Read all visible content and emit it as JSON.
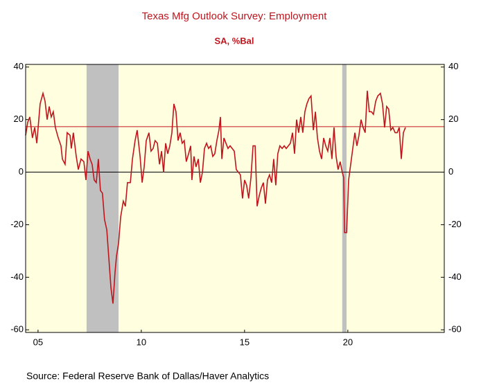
{
  "chart_data": {
    "type": "line",
    "title": "Texas Mfg Outlook Survey: Employment",
    "subtitle": "SA, %Bal",
    "source": "Source:  Federal Reserve Bank of Dallas/Haver Analytics",
    "xlim": [
      2004.9,
      2025.17
    ],
    "xticks": [
      {
        "value": 2005.5,
        "label": "05"
      },
      {
        "value": 2010.5,
        "label": "10"
      },
      {
        "value": 2015.5,
        "label": "15"
      },
      {
        "value": 2020.5,
        "label": "20"
      }
    ],
    "ylim": [
      -61,
      41
    ],
    "yticks": [
      -60,
      -40,
      -20,
      0,
      20,
      40
    ],
    "y2lim": [
      -61,
      41
    ],
    "y2ticks": [
      -60,
      -40,
      -20,
      0,
      20,
      40
    ],
    "reference_line": 17.3,
    "reference_color": "#c0141c",
    "zero_line": 0,
    "shaded_periods": [
      [
        2007.85,
        2009.4
      ],
      [
        2020.23,
        2020.44
      ]
    ],
    "shade_color": "#c0c0c0",
    "background": "#ffffe0",
    "series": [
      {
        "name": "Employment",
        "color": "#c0141c",
        "x": [
          2004.9,
          2005.0,
          2005.1,
          2005.23,
          2005.34,
          2005.44,
          2005.6,
          2005.74,
          2005.84,
          2005.94,
          2006.04,
          2006.14,
          2006.24,
          2006.34,
          2006.48,
          2006.61,
          2006.68,
          2006.81,
          2006.91,
          2007.05,
          2007.11,
          2007.21,
          2007.35,
          2007.45,
          2007.58,
          2007.72,
          2007.82,
          2007.92,
          2008.02,
          2008.12,
          2008.22,
          2008.32,
          2008.42,
          2008.52,
          2008.62,
          2008.72,
          2008.83,
          2008.93,
          2009.03,
          2009.13,
          2009.23,
          2009.3,
          2009.4,
          2009.5,
          2009.63,
          2009.73,
          2009.83,
          2009.97,
          2010.07,
          2010.2,
          2010.3,
          2010.44,
          2010.54,
          2010.64,
          2010.74,
          2010.87,
          2010.97,
          2011.07,
          2011.17,
          2011.28,
          2011.38,
          2011.48,
          2011.58,
          2011.68,
          2011.78,
          2011.88,
          2011.98,
          2012.08,
          2012.18,
          2012.28,
          2012.38,
          2012.48,
          2012.58,
          2012.68,
          2012.79,
          2012.89,
          2012.95,
          2013.05,
          2013.15,
          2013.26,
          2013.36,
          2013.46,
          2013.56,
          2013.66,
          2013.76,
          2013.86,
          2013.96,
          2014.06,
          2014.16,
          2014.26,
          2014.33,
          2014.4,
          2014.5,
          2014.6,
          2014.7,
          2014.8,
          2014.9,
          2015.0,
          2015.1,
          2015.2,
          2015.3,
          2015.4,
          2015.5,
          2015.6,
          2015.7,
          2015.81,
          2015.91,
          2016.01,
          2016.11,
          2016.21,
          2016.31,
          2016.41,
          2016.51,
          2016.61,
          2016.71,
          2016.81,
          2016.91,
          2017.01,
          2017.11,
          2017.21,
          2017.32,
          2017.42,
          2017.52,
          2017.62,
          2017.72,
          2017.82,
          2017.92,
          2018.02,
          2018.12,
          2018.22,
          2018.32,
          2018.42,
          2018.52,
          2018.62,
          2018.72,
          2018.83,
          2018.93,
          2019.03,
          2019.13,
          2019.23,
          2019.33,
          2019.43,
          2019.53,
          2019.63,
          2019.73,
          2019.83,
          2019.93,
          2020.03,
          2020.13,
          2020.23,
          2020.3,
          2020.34,
          2020.44,
          2020.54,
          2020.64,
          2020.74,
          2020.84,
          2020.94,
          2021.04,
          2021.14,
          2021.24,
          2021.34,
          2021.44,
          2021.54,
          2021.64,
          2021.74,
          2021.85,
          2021.95,
          2022.08,
          2022.18,
          2022.28,
          2022.38,
          2022.48,
          2022.58,
          2022.68,
          2022.79,
          2022.89,
          2022.99,
          2023.09,
          2023.19,
          2023.29
        ],
        "values": [
          14,
          19,
          21,
          13,
          17,
          11,
          26,
          30,
          27,
          20,
          25,
          21,
          23,
          17,
          13,
          10,
          5,
          3,
          15,
          14,
          9,
          15,
          6,
          1,
          5,
          4,
          -3,
          8,
          5,
          3,
          -3,
          -4,
          5,
          -7,
          -8,
          -18,
          -22,
          -33,
          -44,
          -50,
          -38,
          -32,
          -27,
          -17,
          -11,
          -13,
          -4,
          -4,
          5,
          12,
          16,
          6,
          -4,
          2,
          12,
          15,
          8,
          9,
          12,
          11,
          3,
          8,
          0,
          11,
          7,
          10,
          15,
          26,
          23,
          12,
          15,
          11,
          12,
          4,
          7,
          10,
          -3,
          6,
          2,
          5,
          -4,
          0,
          9,
          11,
          9,
          10,
          6,
          7,
          12,
          16,
          21,
          5,
          13,
          11,
          9,
          10,
          9,
          8,
          1,
          0,
          -1,
          -10,
          -3,
          -5,
          -10,
          -2,
          10,
          10,
          -13,
          -9,
          -6,
          -4,
          -12,
          -3,
          -1,
          -4,
          5,
          -5,
          7,
          10,
          9,
          10,
          9,
          10,
          11,
          15,
          7,
          20,
          15,
          21,
          15,
          23,
          26,
          28,
          29,
          16,
          23,
          13,
          8,
          5,
          13,
          10,
          8,
          13,
          5,
          17,
          6,
          1,
          4,
          0,
          -2,
          -23,
          -23,
          -3,
          3,
          9,
          15,
          10,
          14,
          20,
          17,
          15,
          31,
          23,
          23,
          22,
          27,
          29,
          30,
          26,
          17,
          25,
          24,
          16,
          17,
          15,
          15,
          17,
          5,
          15,
          17
        ]
      }
    ]
  }
}
